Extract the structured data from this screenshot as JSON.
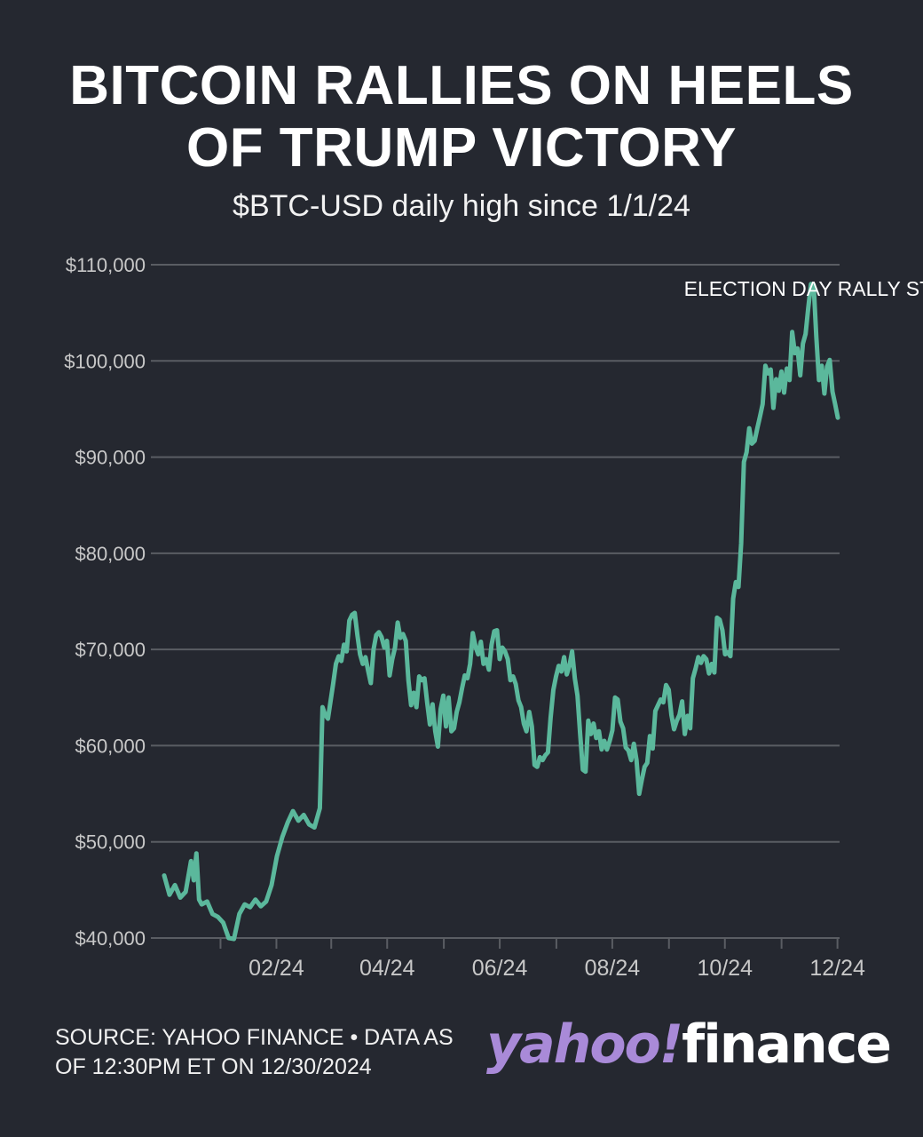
{
  "header": {
    "title_line1": "BITCOIN RALLIES ON HEELS",
    "title_line2": "OF TRUMP VICTORY",
    "subtitle": "$BTC-USD daily high since 1/1/24"
  },
  "footer": {
    "source_line1": "SOURCE: YAHOO FINANCE • DATA AS",
    "source_line2": "OF 12:30PM ET ON 12/30/2024"
  },
  "logo": {
    "part1": "yahoo!",
    "part2": "finance"
  },
  "colors": {
    "background": "#252830",
    "line": "#5bb89c",
    "grid": "#5a5d63",
    "tick_text": "#c8c8c8",
    "annotation": "#ffffff",
    "logo_purple": "#a98ad8"
  },
  "chart_data": {
    "type": "line",
    "title": "BITCOIN RALLIES ON HEELS OF TRUMP VICTORY",
    "subtitle": "$BTC-USD daily high since 1/1/24",
    "xlabel": "",
    "ylabel": "",
    "ylim": [
      40000,
      110000
    ],
    "xlim_days": [
      0,
      365
    ],
    "grid": true,
    "y_ticks": [
      40000,
      50000,
      60000,
      70000,
      80000,
      90000,
      100000,
      110000
    ],
    "y_tick_labels": [
      "$40,000",
      "$50,000",
      "$60,000",
      "$70,000",
      "$80,000",
      "$90,000",
      "$100,000",
      "$110,000"
    ],
    "x_ticks": [
      {
        "label": "02/24",
        "day": 31
      },
      {
        "label": "04/24",
        "day": 91
      },
      {
        "label": "06/24",
        "day": 152
      },
      {
        "label": "08/24",
        "day": 213
      },
      {
        "label": "10/24",
        "day": 274
      },
      {
        "label": "12/24",
        "day": 335
      }
    ],
    "annotation": {
      "label": "ELECTION DAY RALLY STARTS",
      "day": 310
    },
    "series": [
      {
        "name": "$BTC-USD daily high",
        "points": [
          [
            0,
            46500
          ],
          [
            2,
            44500
          ],
          [
            4,
            45500
          ],
          [
            6,
            44200
          ],
          [
            8,
            44800
          ],
          [
            10,
            48000
          ],
          [
            11,
            46000
          ],
          [
            12,
            48800
          ],
          [
            13,
            44000
          ],
          [
            14,
            43500
          ],
          [
            16,
            43800
          ],
          [
            18,
            42500
          ],
          [
            20,
            42200
          ],
          [
            22,
            41600
          ],
          [
            24,
            40000
          ],
          [
            26,
            39900
          ],
          [
            28,
            42500
          ],
          [
            30,
            43500
          ],
          [
            32,
            43200
          ],
          [
            34,
            44000
          ],
          [
            36,
            43300
          ],
          [
            38,
            43800
          ],
          [
            40,
            45500
          ],
          [
            42,
            48500
          ],
          [
            44,
            50500
          ],
          [
            46,
            52000
          ],
          [
            48,
            53200
          ],
          [
            50,
            52200
          ],
          [
            52,
            52800
          ],
          [
            54,
            51800
          ],
          [
            56,
            51500
          ],
          [
            58,
            53500
          ],
          [
            59,
            64000
          ],
          [
            60,
            63200
          ],
          [
            61,
            62800
          ],
          [
            63,
            66500
          ],
          [
            64,
            68500
          ],
          [
            65,
            69300
          ],
          [
            66,
            68800
          ],
          [
            67,
            70500
          ],
          [
            68,
            69800
          ],
          [
            69,
            73000
          ],
          [
            70,
            73600
          ],
          [
            71,
            73800
          ],
          [
            72,
            71500
          ],
          [
            73,
            69500
          ],
          [
            74,
            68500
          ],
          [
            75,
            69200
          ],
          [
            76,
            67800
          ],
          [
            77,
            66500
          ],
          [
            78,
            70000
          ],
          [
            79,
            71500
          ],
          [
            80,
            71800
          ],
          [
            81,
            71300
          ],
          [
            82,
            70200
          ],
          [
            83,
            70900
          ],
          [
            84,
            67300
          ],
          [
            85,
            69000
          ],
          [
            86,
            70200
          ],
          [
            87,
            72800
          ],
          [
            88,
            71200
          ],
          [
            89,
            71600
          ],
          [
            90,
            70900
          ],
          [
            91,
            66800
          ],
          [
            92,
            64200
          ],
          [
            93,
            65500
          ],
          [
            94,
            64000
          ],
          [
            95,
            67200
          ],
          [
            96,
            66800
          ],
          [
            97,
            67000
          ],
          [
            98,
            64500
          ],
          [
            99,
            62200
          ],
          [
            100,
            64300
          ],
          [
            101,
            61500
          ],
          [
            102,
            59900
          ],
          [
            103,
            63800
          ],
          [
            104,
            65200
          ],
          [
            105,
            62000
          ],
          [
            106,
            65000
          ],
          [
            107,
            61500
          ],
          [
            108,
            61800
          ],
          [
            109,
            63500
          ],
          [
            110,
            64500
          ],
          [
            111,
            66000
          ],
          [
            112,
            67300
          ],
          [
            113,
            67000
          ],
          [
            114,
            68500
          ],
          [
            115,
            71700
          ],
          [
            116,
            70300
          ],
          [
            117,
            69500
          ],
          [
            118,
            70800
          ],
          [
            119,
            68500
          ],
          [
            120,
            69000
          ],
          [
            121,
            67900
          ],
          [
            122,
            70500
          ],
          [
            123,
            71900
          ],
          [
            124,
            72000
          ],
          [
            125,
            69000
          ],
          [
            126,
            70200
          ],
          [
            127,
            69800
          ],
          [
            128,
            69000
          ],
          [
            129,
            66800
          ],
          [
            130,
            67200
          ],
          [
            131,
            66400
          ],
          [
            132,
            64700
          ],
          [
            133,
            64000
          ],
          [
            134,
            62300
          ],
          [
            135,
            61500
          ],
          [
            136,
            63500
          ],
          [
            137,
            62000
          ],
          [
            138,
            58000
          ],
          [
            139,
            57800
          ],
          [
            140,
            58800
          ],
          [
            141,
            58500
          ],
          [
            142,
            59000
          ],
          [
            143,
            59300
          ],
          [
            144,
            62900
          ],
          [
            145,
            65800
          ],
          [
            146,
            67200
          ],
          [
            147,
            68300
          ],
          [
            148,
            67700
          ],
          [
            149,
            69200
          ],
          [
            150,
            67400
          ],
          [
            151,
            68300
          ],
          [
            152,
            69800
          ],
          [
            153,
            67000
          ],
          [
            154,
            65200
          ],
          [
            155,
            61200
          ],
          [
            156,
            57500
          ],
          [
            157,
            57300
          ],
          [
            158,
            62600
          ],
          [
            159,
            61200
          ],
          [
            160,
            62300
          ],
          [
            161,
            60800
          ],
          [
            162,
            61500
          ],
          [
            163,
            59600
          ],
          [
            164,
            60500
          ],
          [
            165,
            59600
          ],
          [
            166,
            60500
          ],
          [
            167,
            61600
          ],
          [
            168,
            65000
          ],
          [
            169,
            64800
          ],
          [
            170,
            62500
          ],
          [
            171,
            61800
          ],
          [
            172,
            59800
          ],
          [
            173,
            59500
          ],
          [
            174,
            58500
          ],
          [
            175,
            60200
          ],
          [
            176,
            58500
          ],
          [
            177,
            55000
          ],
          [
            178,
            56500
          ],
          [
            179,
            57800
          ],
          [
            180,
            58200
          ],
          [
            181,
            61000
          ],
          [
            182,
            59700
          ],
          [
            183,
            63600
          ],
          [
            184,
            64200
          ],
          [
            185,
            64800
          ],
          [
            186,
            64500
          ],
          [
            187,
            66300
          ],
          [
            188,
            65800
          ],
          [
            189,
            63200
          ],
          [
            190,
            61700
          ],
          [
            191,
            62600
          ],
          [
            192,
            63200
          ],
          [
            193,
            64600
          ],
          [
            194,
            61200
          ],
          [
            195,
            63100
          ],
          [
            196,
            61800
          ],
          [
            197,
            67000
          ],
          [
            198,
            68000
          ],
          [
            199,
            69200
          ],
          [
            200,
            68600
          ],
          [
            201,
            69300
          ],
          [
            202,
            69000
          ],
          [
            203,
            67500
          ],
          [
            204,
            68500
          ],
          [
            205,
            67600
          ],
          [
            206,
            73300
          ],
          [
            207,
            73100
          ],
          [
            208,
            72000
          ],
          [
            209,
            69500
          ],
          [
            210,
            69700
          ],
          [
            211,
            69300
          ],
          [
            212,
            75300
          ],
          [
            213,
            77000
          ],
          [
            214,
            76500
          ],
          [
            215,
            81000
          ],
          [
            216,
            89500
          ],
          [
            217,
            90500
          ],
          [
            218,
            93000
          ],
          [
            219,
            91400
          ],
          [
            220,
            91700
          ],
          [
            221,
            93000
          ],
          [
            222,
            94200
          ],
          [
            223,
            95500
          ],
          [
            224,
            99500
          ],
          [
            225,
            98700
          ],
          [
            226,
            99100
          ],
          [
            227,
            95100
          ],
          [
            228,
            98100
          ],
          [
            229,
            96900
          ],
          [
            230,
            98900
          ],
          [
            231,
            96700
          ],
          [
            232,
            99200
          ],
          [
            233,
            98000
          ],
          [
            234,
            103000
          ],
          [
            235,
            100800
          ],
          [
            236,
            101300
          ],
          [
            237,
            98500
          ],
          [
            238,
            101800
          ],
          [
            239,
            102800
          ],
          [
            240,
            105500
          ],
          [
            241,
            108000
          ],
          [
            242,
            107900
          ],
          [
            243,
            102500
          ],
          [
            244,
            98000
          ],
          [
            245,
            99500
          ],
          [
            246,
            96600
          ],
          [
            247,
            99400
          ],
          [
            248,
            100100
          ],
          [
            249,
            96800
          ],
          [
            250,
            95500
          ],
          [
            251,
            94100
          ]
        ]
      }
    ]
  }
}
